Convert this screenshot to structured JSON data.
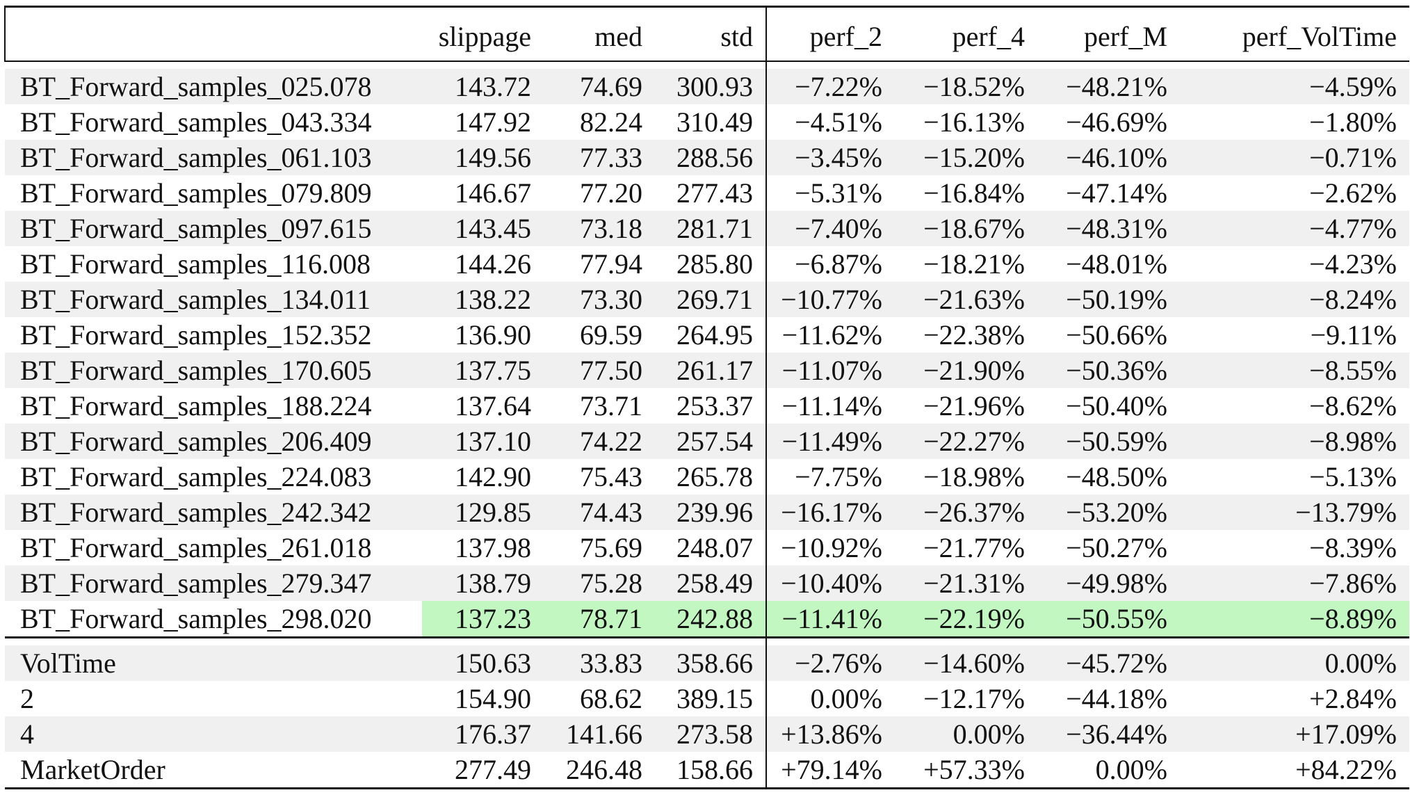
{
  "columns": [
    "",
    "slippage",
    "med",
    "std",
    "perf_2",
    "perf_4",
    "perf_M",
    "perf_VolTime"
  ],
  "group1": [
    {
      "name": "BT_Forward_samples_025.078",
      "slippage": "143.72",
      "med": "74.69",
      "std": "300.93",
      "perf_2": "−7.22%",
      "perf_4": "−18.52%",
      "perf_M": "−48.21%",
      "perf_VolTime": "−4.59%"
    },
    {
      "name": "BT_Forward_samples_043.334",
      "slippage": "147.92",
      "med": "82.24",
      "std": "310.49",
      "perf_2": "−4.51%",
      "perf_4": "−16.13%",
      "perf_M": "−46.69%",
      "perf_VolTime": "−1.80%"
    },
    {
      "name": "BT_Forward_samples_061.103",
      "slippage": "149.56",
      "med": "77.33",
      "std": "288.56",
      "perf_2": "−3.45%",
      "perf_4": "−15.20%",
      "perf_M": "−46.10%",
      "perf_VolTime": "−0.71%"
    },
    {
      "name": "BT_Forward_samples_079.809",
      "slippage": "146.67",
      "med": "77.20",
      "std": "277.43",
      "perf_2": "−5.31%",
      "perf_4": "−16.84%",
      "perf_M": "−47.14%",
      "perf_VolTime": "−2.62%"
    },
    {
      "name": "BT_Forward_samples_097.615",
      "slippage": "143.45",
      "med": "73.18",
      "std": "281.71",
      "perf_2": "−7.40%",
      "perf_4": "−18.67%",
      "perf_M": "−48.31%",
      "perf_VolTime": "−4.77%"
    },
    {
      "name": "BT_Forward_samples_116.008",
      "slippage": "144.26",
      "med": "77.94",
      "std": "285.80",
      "perf_2": "−6.87%",
      "perf_4": "−18.21%",
      "perf_M": "−48.01%",
      "perf_VolTime": "−4.23%"
    },
    {
      "name": "BT_Forward_samples_134.011",
      "slippage": "138.22",
      "med": "73.30",
      "std": "269.71",
      "perf_2": "−10.77%",
      "perf_4": "−21.63%",
      "perf_M": "−50.19%",
      "perf_VolTime": "−8.24%"
    },
    {
      "name": "BT_Forward_samples_152.352",
      "slippage": "136.90",
      "med": "69.59",
      "std": "264.95",
      "perf_2": "−11.62%",
      "perf_4": "−22.38%",
      "perf_M": "−50.66%",
      "perf_VolTime": "−9.11%"
    },
    {
      "name": "BT_Forward_samples_170.605",
      "slippage": "137.75",
      "med": "77.50",
      "std": "261.17",
      "perf_2": "−11.07%",
      "perf_4": "−21.90%",
      "perf_M": "−50.36%",
      "perf_VolTime": "−8.55%"
    },
    {
      "name": "BT_Forward_samples_188.224",
      "slippage": "137.64",
      "med": "73.71",
      "std": "253.37",
      "perf_2": "−11.14%",
      "perf_4": "−21.96%",
      "perf_M": "−50.40%",
      "perf_VolTime": "−8.62%"
    },
    {
      "name": "BT_Forward_samples_206.409",
      "slippage": "137.10",
      "med": "74.22",
      "std": "257.54",
      "perf_2": "−11.49%",
      "perf_4": "−22.27%",
      "perf_M": "−50.59%",
      "perf_VolTime": "−8.98%"
    },
    {
      "name": "BT_Forward_samples_224.083",
      "slippage": "142.90",
      "med": "75.43",
      "std": "265.78",
      "perf_2": "−7.75%",
      "perf_4": "−18.98%",
      "perf_M": "−48.50%",
      "perf_VolTime": "−5.13%"
    },
    {
      "name": "BT_Forward_samples_242.342",
      "slippage": "129.85",
      "med": "74.43",
      "std": "239.96",
      "perf_2": "−16.17%",
      "perf_4": "−26.37%",
      "perf_M": "−53.20%",
      "perf_VolTime": "−13.79%"
    },
    {
      "name": "BT_Forward_samples_261.018",
      "slippage": "137.98",
      "med": "75.69",
      "std": "248.07",
      "perf_2": "−10.92%",
      "perf_4": "−21.77%",
      "perf_M": "−50.27%",
      "perf_VolTime": "−8.39%"
    },
    {
      "name": "BT_Forward_samples_279.347",
      "slippage": "138.79",
      "med": "75.28",
      "std": "258.49",
      "perf_2": "−10.40%",
      "perf_4": "−21.31%",
      "perf_M": "−49.98%",
      "perf_VolTime": "−7.86%"
    },
    {
      "name": "BT_Forward_samples_298.020",
      "slippage": "137.23",
      "med": "78.71",
      "std": "242.88",
      "perf_2": "−11.41%",
      "perf_4": "−22.19%",
      "perf_M": "−50.55%",
      "perf_VolTime": "−8.89%",
      "highlight": true
    }
  ],
  "group2": [
    {
      "name": "VolTime",
      "slippage": "150.63",
      "med": "33.83",
      "std": "358.66",
      "perf_2": "−2.76%",
      "perf_4": "−14.60%",
      "perf_M": "−45.72%",
      "perf_VolTime": "0.00%"
    },
    {
      "name": "2",
      "slippage": "154.90",
      "med": "68.62",
      "std": "389.15",
      "perf_2": "0.00%",
      "perf_4": "−12.17%",
      "perf_M": "−44.18%",
      "perf_VolTime": "+2.84%"
    },
    {
      "name": "4",
      "slippage": "176.37",
      "med": "141.66",
      "std": "273.58",
      "perf_2": "+13.86%",
      "perf_4": "0.00%",
      "perf_M": "−36.44%",
      "perf_VolTime": "+17.09%"
    },
    {
      "name": "MarketOrder",
      "slippage": "277.49",
      "med": "246.48",
      "std": "158.66",
      "perf_2": "+79.14%",
      "perf_4": "+57.33%",
      "perf_M": "0.00%",
      "perf_VolTime": "+84.22%"
    }
  ],
  "highlight_color": "#c2f7c2",
  "stripe_color": "#f0f0f0"
}
